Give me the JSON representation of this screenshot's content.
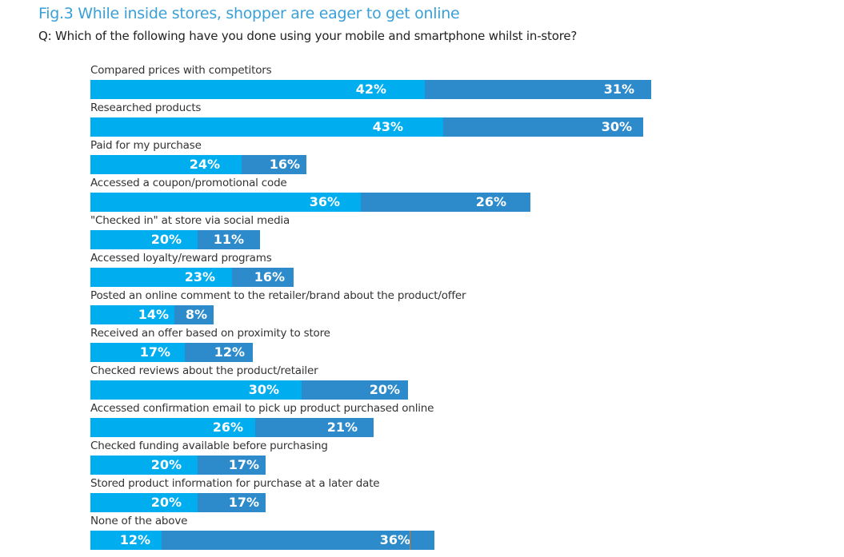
{
  "title": "Fig.3 While inside stores, shopper are eager to get online",
  "subtitle": "Q: Which of the following have you done using your mobile and smartphone whilst in-store?",
  "colors": {
    "series_a": "#00adef",
    "series_b": "#2d8bcb",
    "title": "#3aa0d8"
  },
  "chart_data": {
    "type": "bar",
    "orientation": "horizontal",
    "stacked": true,
    "title": "Fig.3 While inside stores, shopper are eager to get online",
    "subtitle": "Q: Which of the following have you done using your mobile and smartphone whilst in-store?",
    "xlabel": "",
    "ylabel": "",
    "grid": false,
    "legend": "none",
    "categories": [
      "Compared prices with competitors",
      "Researched products",
      "Paid for my purchase",
      "Accessed a coupon/promotional code",
      "\"Checked in\" at store via social media",
      "Accessed loyalty/reward programs",
      "Posted an online comment to the retailer/brand about the product/offer",
      "Received an offer based on proximity to store",
      "Checked reviews about the product/retailer",
      "Accessed confirmation email to pick up product purchased online",
      "Checked funding available before purchasing",
      "Stored product information for purchase at a later date",
      "None of the above"
    ],
    "series": [
      {
        "name": "series_a",
        "values": [
          42,
          43,
          24,
          36,
          20,
          23,
          14,
          17,
          30,
          26,
          20,
          20,
          12
        ]
      },
      {
        "name": "series_b",
        "values": [
          31,
          30,
          16,
          26,
          11,
          16,
          8,
          12,
          20,
          21,
          17,
          17,
          36
        ]
      }
    ],
    "labels_a": [
      "42%",
      "43%",
      "24%",
      "36%",
      "20%",
      "23%",
      "14%",
      "17%",
      "30%",
      "26%",
      "20%",
      "20%",
      "12%"
    ],
    "labels_b": [
      "31%",
      "30%",
      "16%",
      "26%",
      "11%",
      "16%",
      "8%",
      "12%",
      "20%",
      "21%",
      "17%",
      "17%",
      "36%"
    ]
  }
}
